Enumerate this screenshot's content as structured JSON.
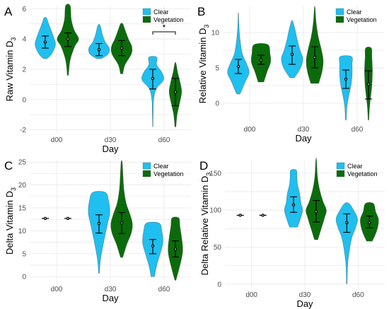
{
  "colors": {
    "clear": "#1fbff0",
    "vegetation": "#0b6b0b",
    "grid": "#e6e6e6"
  },
  "legend": {
    "clear": "Clear",
    "vegetation": "Vegetation"
  },
  "chart_data": [
    {
      "panel": "A",
      "type": "violin",
      "ylabel": "Raw Vitamin D",
      "ylabel_sub": "3",
      "xlabel": "Day",
      "categories": [
        "d00",
        "d30",
        "d60"
      ],
      "ylim": [
        -2.2,
        6.2
      ],
      "yticks": [
        -2,
        0,
        2,
        4,
        6
      ],
      "grid": true,
      "legend_position": "top-right",
      "significance": {
        "group": "d60",
        "label": "*"
      },
      "series": [
        {
          "name": "Clear",
          "groups": [
            {
              "min": 2.7,
              "max": 5.4,
              "mean": 3.8,
              "ci": [
                3.4,
                4.2
              ],
              "shape": [
                [
                  2.7,
                  0.15
                ],
                [
                  3.0,
                  0.55
                ],
                [
                  3.6,
                  0.9
                ],
                [
                  4.1,
                  0.75
                ],
                [
                  4.7,
                  0.45
                ],
                [
                  5.1,
                  0.25
                ],
                [
                  5.4,
                  0.1
                ]
              ]
            },
            {
              "min": 2.7,
              "max": 4.9,
              "mean": 3.3,
              "ci": [
                2.9,
                3.7
              ],
              "shape": [
                [
                  2.7,
                  0.2
                ],
                [
                  3.0,
                  0.8
                ],
                [
                  3.4,
                  0.9
                ],
                [
                  3.8,
                  0.55
                ],
                [
                  4.3,
                  0.3
                ],
                [
                  4.9,
                  0.1
                ]
              ]
            },
            {
              "min": -1.8,
              "max": 2.8,
              "mean": 1.4,
              "ci": [
                0.7,
                2.0
              ],
              "shape": [
                [
                  -1.8,
                  0.02
                ],
                [
                  -0.8,
                  0.04
                ],
                [
                  0.0,
                  0.08
                ],
                [
                  0.7,
                  0.3
                ],
                [
                  1.3,
                  0.95
                ],
                [
                  1.8,
                  0.8
                ],
                [
                  2.3,
                  0.35
                ],
                [
                  2.8,
                  0.35
                ]
              ]
            }
          ]
        },
        {
          "name": "Vegetation",
          "groups": [
            {
              "min": 1.6,
              "max": 6.2,
              "mean": 4.0,
              "ci": [
                3.5,
                4.4
              ],
              "shape": [
                [
                  1.6,
                  0.05
                ],
                [
                  2.6,
                  0.2
                ],
                [
                  3.5,
                  0.6
                ],
                [
                  4.0,
                  0.95
                ],
                [
                  4.6,
                  0.55
                ],
                [
                  5.3,
                  0.3
                ],
                [
                  6.2,
                  0.2
                ]
              ]
            },
            {
              "min": 1.7,
              "max": 5.0,
              "mean": 3.4,
              "ci": [
                2.9,
                3.9
              ],
              "shape": [
                [
                  1.7,
                  0.1
                ],
                [
                  2.3,
                  0.3
                ],
                [
                  3.0,
                  0.85
                ],
                [
                  3.5,
                  0.9
                ],
                [
                  4.0,
                  0.6
                ],
                [
                  4.6,
                  0.3
                ],
                [
                  5.0,
                  0.1
                ]
              ]
            },
            {
              "min": -1.8,
              "max": 2.4,
              "mean": 0.5,
              "ci": [
                -0.4,
                1.4
              ],
              "shape": [
                [
                  -1.8,
                  0.05
                ],
                [
                  -1.0,
                  0.15
                ],
                [
                  -0.3,
                  0.35
                ],
                [
                  0.5,
                  0.55
                ],
                [
                  1.2,
                  0.4
                ],
                [
                  1.8,
                  0.2
                ],
                [
                  2.4,
                  0.05
                ]
              ]
            }
          ]
        }
      ]
    },
    {
      "panel": "B",
      "type": "violin",
      "ylabel": "Relative Vitamin D",
      "ylabel_sub": "3",
      "xlabel": "Day",
      "categories": [
        "d00",
        "d30",
        "d60"
      ],
      "ylim": [
        -2.7,
        13.8
      ],
      "yticks": [
        0,
        5,
        10
      ],
      "grid": true,
      "legend_position": "top-right",
      "series": [
        {
          "name": "Clear",
          "groups": [
            {
              "min": 1.3,
              "max": 12.6,
              "mean": 5.2,
              "ci": [
                4.2,
                6.2
              ],
              "shape": [
                [
                  1.3,
                  0.15
                ],
                [
                  3.0,
                  0.6
                ],
                [
                  4.3,
                  0.95
                ],
                [
                  5.5,
                  0.75
                ],
                [
                  7.0,
                  0.35
                ],
                [
                  9.0,
                  0.15
                ],
                [
                  11.0,
                  0.05
                ],
                [
                  12.6,
                  0.02
                ]
              ]
            },
            {
              "min": 3.6,
              "max": 11.6,
              "mean": 6.9,
              "ci": [
                5.5,
                8.1
              ],
              "shape": [
                [
                  3.6,
                  0.2
                ],
                [
                  5.0,
                  0.75
                ],
                [
                  6.3,
                  0.95
                ],
                [
                  7.5,
                  0.7
                ],
                [
                  9.0,
                  0.45
                ],
                [
                  10.5,
                  0.25
                ],
                [
                  11.6,
                  0.05
                ]
              ]
            },
            {
              "min": -2.4,
              "max": 6.6,
              "mean": 3.4,
              "ci": [
                2.1,
                4.7
              ],
              "shape": [
                [
                  -2.4,
                  0.03
                ],
                [
                  -0.5,
                  0.1
                ],
                [
                  1.0,
                  0.25
                ],
                [
                  2.5,
                  0.45
                ],
                [
                  4.0,
                  0.55
                ],
                [
                  5.5,
                  0.55
                ],
                [
                  6.6,
                  0.5
                ]
              ]
            }
          ]
        },
        {
          "name": "Vegetation",
          "groups": [
            {
              "min": 3.0,
              "max": 8.3,
              "mean": 6.1,
              "ci": [
                5.5,
                6.8
              ],
              "shape": [
                [
                  3.0,
                  0.25
                ],
                [
                  4.5,
                  0.55
                ],
                [
                  5.8,
                  0.85
                ],
                [
                  7.0,
                  0.8
                ],
                [
                  8.3,
                  0.6
                ]
              ]
            },
            {
              "min": 2.8,
              "max": 13.5,
              "mean": 6.5,
              "ci": [
                5.0,
                8.0
              ],
              "shape": [
                [
                  2.8,
                  0.35
                ],
                [
                  4.5,
                  0.65
                ],
                [
                  6.0,
                  0.75
                ],
                [
                  7.5,
                  0.6
                ],
                [
                  9.5,
                  0.3
                ],
                [
                  11.5,
                  0.12
                ],
                [
                  13.5,
                  0.03
                ]
              ]
            },
            {
              "min": -2.4,
              "max": 7.8,
              "mean": 2.7,
              "ci": [
                0.6,
                4.6
              ],
              "shape": [
                [
                  -2.4,
                  0.03
                ],
                [
                  -0.5,
                  0.1
                ],
                [
                  1.0,
                  0.2
                ],
                [
                  2.5,
                  0.3
                ],
                [
                  4.5,
                  0.35
                ],
                [
                  6.5,
                  0.3
                ],
                [
                  7.8,
                  0.25
                ]
              ]
            }
          ]
        }
      ]
    },
    {
      "panel": "C",
      "type": "violin",
      "ylabel": "Delta Vitamin D",
      "ylabel_sub": "3",
      "xlabel": "Day",
      "categories": [
        "d00",
        "d30",
        "d60"
      ],
      "ylim": [
        -1.2,
        25.5
      ],
      "yticks": [
        0,
        5,
        10,
        15,
        20,
        25
      ],
      "grid": true,
      "legend_position": "top-right",
      "series": [
        {
          "name": "Clear",
          "groups": [
            {
              "min": 12.7,
              "max": 12.7,
              "mean": 12.7,
              "ci": [
                12.7,
                12.7
              ],
              "shape": []
            },
            {
              "min": 0.7,
              "max": 18.4,
              "mean": 11.6,
              "ci": [
                9.5,
                13.5
              ],
              "shape": [
                [
                  0.7,
                  0.03
                ],
                [
                  4.0,
                  0.15
                ],
                [
                  8.0,
                  0.45
                ],
                [
                  11.5,
                  0.75
                ],
                [
                  14.0,
                  0.95
                ],
                [
                  16.5,
                  0.85
                ],
                [
                  18.4,
                  0.55
                ]
              ]
            },
            {
              "min": 0.0,
              "max": 11.7,
              "mean": 6.7,
              "ci": [
                5.0,
                8.1
              ],
              "shape": [
                [
                  0.0,
                  0.15
                ],
                [
                  2.5,
                  0.35
                ],
                [
                  5.0,
                  0.65
                ],
                [
                  7.5,
                  0.9
                ],
                [
                  10.0,
                  0.8
                ],
                [
                  11.7,
                  0.55
                ]
              ]
            }
          ]
        },
        {
          "name": "Vegetation",
          "groups": [
            {
              "min": 12.7,
              "max": 12.7,
              "mean": 12.7,
              "ci": [
                12.7,
                12.7
              ],
              "shape": []
            },
            {
              "min": 4.2,
              "max": 25.0,
              "mean": 11.7,
              "ci": [
                9.4,
                14.0
              ],
              "shape": [
                [
                  4.2,
                  0.1
                ],
                [
                  7.0,
                  0.45
                ],
                [
                  9.5,
                  0.85
                ],
                [
                  11.5,
                  0.95
                ],
                [
                  13.5,
                  0.75
                ],
                [
                  16.0,
                  0.4
                ],
                [
                  19.0,
                  0.2
                ],
                [
                  22.0,
                  0.12
                ],
                [
                  25.0,
                  0.05
                ]
              ]
            },
            {
              "min": -0.8,
              "max": 12.8,
              "mean": 6.0,
              "ci": [
                4.3,
                7.8
              ],
              "shape": [
                [
                  -0.8,
                  0.05
                ],
                [
                  1.5,
                  0.3
                ],
                [
                  4.0,
                  0.55
                ],
                [
                  6.0,
                  0.65
                ],
                [
                  8.5,
                  0.55
                ],
                [
                  11.0,
                  0.4
                ],
                [
                  12.8,
                  0.3
                ]
              ]
            }
          ]
        }
      ]
    },
    {
      "panel": "D",
      "type": "violin",
      "ylabel": "Delta Relative Vitamin D",
      "ylabel_sub": "3",
      "xlabel": "Day",
      "categories": [
        "d00",
        "d30",
        "d60"
      ],
      "ylim": [
        -5,
        168
      ],
      "yticks": [
        0,
        50,
        100,
        150
      ],
      "grid": true,
      "legend_position": "top-right",
      "series": [
        {
          "name": "Clear",
          "groups": [
            {
              "min": 93,
              "max": 93,
              "mean": 93,
              "ci": [
                93,
                93
              ],
              "shape": []
            },
            {
              "min": 77,
              "max": 154,
              "mean": 107,
              "ci": [
                97,
                118
              ],
              "shape": [
                [
                  77,
                  0.35
                ],
                [
                  88,
                  0.6
                ],
                [
                  100,
                  0.8
                ],
                [
                  110,
                  0.65
                ],
                [
                  122,
                  0.55
                ],
                [
                  135,
                  0.35
                ],
                [
                  145,
                  0.3
                ],
                [
                  154,
                  0.25
                ]
              ]
            },
            {
              "min": 0,
              "max": 109,
              "mean": 83,
              "ci": [
                70,
                95
              ],
              "shape": [
                [
                  0,
                  0.03
                ],
                [
                  30,
                  0.1
                ],
                [
                  60,
                  0.4
                ],
                [
                  75,
                  0.75
                ],
                [
                  88,
                  0.95
                ],
                [
                  100,
                  0.6
                ],
                [
                  109,
                  0.2
                ]
              ]
            }
          ]
        },
        {
          "name": "Vegetation",
          "groups": [
            {
              "min": 93,
              "max": 93,
              "mean": 93,
              "ci": [
                93,
                93
              ],
              "shape": []
            },
            {
              "min": 60,
              "max": 168,
              "mean": 98,
              "ci": [
                84,
                113
              ],
              "shape": [
                [
                  60,
                  0.15
                ],
                [
                  75,
                  0.45
                ],
                [
                  90,
                  0.75
                ],
                [
                  100,
                  0.9
                ],
                [
                  112,
                  0.6
                ],
                [
                  128,
                  0.3
                ],
                [
                  145,
                  0.12
                ],
                [
                  168,
                  0.03
                ]
              ]
            },
            {
              "min": 58,
              "max": 109,
              "mean": 83,
              "ci": [
                76,
                92
              ],
              "shape": [
                [
                  58,
                  0.25
                ],
                [
                  68,
                  0.55
                ],
                [
                  78,
                  0.75
                ],
                [
                  88,
                  0.8
                ],
                [
                  98,
                  0.55
                ],
                [
                  109,
                  0.35
                ]
              ]
            }
          ]
        }
      ]
    }
  ]
}
